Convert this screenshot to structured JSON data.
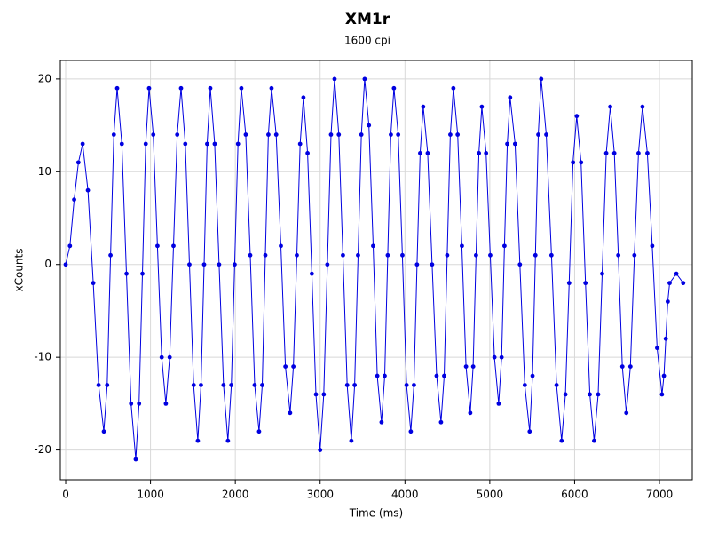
{
  "chart_data": {
    "type": "scatter_line",
    "title": "XM1r",
    "subtitle": "1600 cpi",
    "x_label": "Time (ms)",
    "y_label": "xCounts",
    "xlim": [
      -63,
      7387
    ],
    "ylim": [
      -23.2,
      22
    ],
    "xticks": [
      0,
      1000,
      2000,
      3000,
      4000,
      5000,
      6000,
      7000
    ],
    "yticks": [
      -20,
      -10,
      0,
      10,
      20
    ],
    "grid": true,
    "series": [
      {
        "color": "#0000e0",
        "x": [
          0,
          50,
          100,
          150,
          200,
          262,
          325,
          388,
          450,
          489,
          529,
          568,
          607,
          662,
          717,
          771,
          826,
          865,
          905,
          944,
          983,
          1033,
          1082,
          1132,
          1181,
          1226,
          1271,
          1315,
          1360,
          1410,
          1459,
          1509,
          1558,
          1595,
          1632,
          1668,
          1705,
          1757,
          1809,
          1861,
          1913,
          1953,
          1992,
          2032,
          2071,
          2123,
          2176,
          2228,
          2280,
          2317,
          2354,
          2390,
          2427,
          2482,
          2537,
          2591,
          2646,
          2685,
          2725,
          2764,
          2803,
          2852,
          2902,
          2951,
          3000,
          3043,
          3085,
          3128,
          3170,
          3220,
          3269,
          3319,
          3368,
          3407,
          3447,
          3486,
          3525,
          3575,
          3625,
          3674,
          3724,
          3761,
          3797,
          3834,
          3870,
          3920,
          3970,
          4019,
          4069,
          4106,
          4142,
          4179,
          4215,
          4268,
          4320,
          4373,
          4425,
          4462,
          4498,
          4535,
          4571,
          4621,
          4671,
          4720,
          4770,
          4804,
          4838,
          4872,
          4906,
          4956,
          5006,
          5055,
          5105,
          5139,
          5173,
          5206,
          5240,
          5298,
          5355,
          5413,
          5470,
          5504,
          5538,
          5572,
          5606,
          5666,
          5727,
          5787,
          5847,
          5892,
          5936,
          5981,
          6025,
          6076,
          6128,
          6179,
          6230,
          6278,
          6325,
          6373,
          6420,
          6468,
          6515,
          6563,
          6610,
          6658,
          6705,
          6753,
          6800,
          6858,
          6915,
          6973,
          7030,
          7053,
          7075,
          7098,
          7120,
          7200,
          7280
        ],
        "values": [
          0,
          2,
          7,
          11,
          13,
          8,
          -2,
          -13,
          -18,
          -13,
          1,
          14,
          19,
          13,
          -1,
          -15,
          -21,
          -15,
          -1,
          13,
          19,
          14,
          2,
          -10,
          -15,
          -10,
          2,
          14,
          19,
          13,
          0,
          -13,
          -19,
          -13,
          0,
          13,
          19,
          13,
          0,
          -13,
          -19,
          -13,
          0,
          13,
          19,
          14,
          1,
          -13,
          -18,
          -13,
          1,
          14,
          19,
          14,
          2,
          -11,
          -16,
          -11,
          1,
          13,
          18,
          12,
          -1,
          -14,
          -20,
          -14,
          0,
          14,
          20,
          14,
          1,
          -13,
          -19,
          -13,
          1,
          14,
          20,
          15,
          2,
          -12,
          -17,
          -12,
          1,
          14,
          19,
          14,
          1,
          -13,
          -18,
          -13,
          0,
          12,
          17,
          12,
          0,
          -12,
          -17,
          -12,
          1,
          14,
          19,
          14,
          2,
          -11,
          -16,
          -11,
          1,
          12,
          17,
          12,
          1,
          -10,
          -15,
          -10,
          2,
          13,
          18,
          13,
          0,
          -13,
          -18,
          -12,
          1,
          14,
          20,
          14,
          1,
          -13,
          -19,
          -14,
          -2,
          11,
          16,
          11,
          -2,
          -14,
          -19,
          -14,
          -1,
          12,
          17,
          12,
          1,
          -11,
          -16,
          -11,
          1,
          12,
          17,
          12,
          2,
          -9,
          -14,
          -12,
          -8,
          -4,
          -2,
          -1,
          -2
        ]
      }
    ]
  }
}
